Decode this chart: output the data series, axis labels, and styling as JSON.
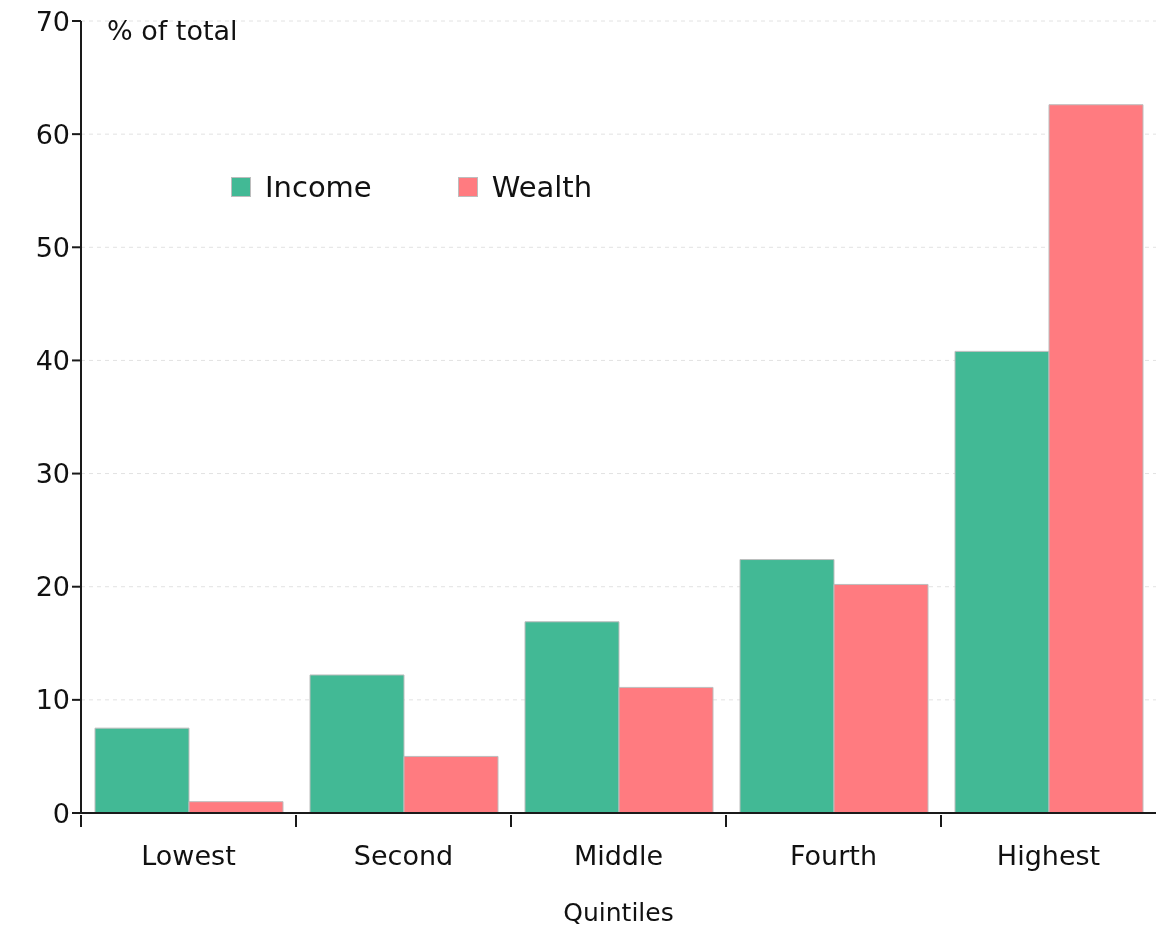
{
  "chart_data": {
    "type": "bar",
    "xlabel": "Quintiles",
    "ylabel": "% of total",
    "categories": [
      "Lowest",
      "Second",
      "Middle",
      "Fourth",
      "Highest"
    ],
    "series": [
      {
        "name": "Income",
        "color": "#42b995",
        "values": [
          7.5,
          12.2,
          16.9,
          22.4,
          40.8
        ]
      },
      {
        "name": "Wealth",
        "color": "#ff7b80",
        "values": [
          1.0,
          5.0,
          11.1,
          20.2,
          62.6
        ]
      }
    ],
    "ylim": [
      0,
      70
    ],
    "yticks": [
      0,
      10,
      20,
      30,
      40,
      50,
      60,
      70
    ],
    "grid": "y",
    "legend": "top left"
  }
}
